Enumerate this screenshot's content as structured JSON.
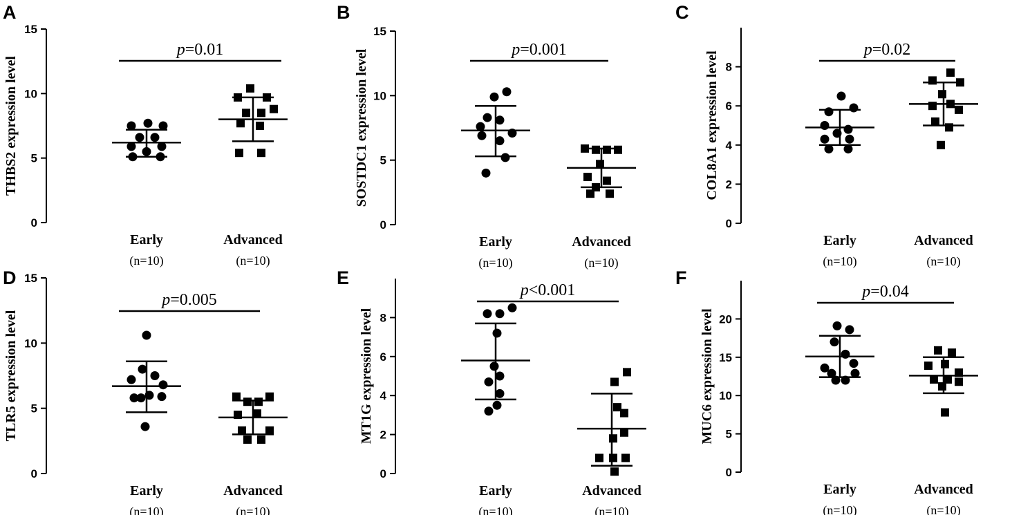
{
  "chart_data": [
    {
      "panel": "A",
      "type": "scatter",
      "ylabel": "THBS2 expression level",
      "ylim": [
        0,
        15
      ],
      "yticks": [
        0,
        5,
        10,
        15
      ],
      "categories": [
        "Early",
        "Advanced"
      ],
      "n_labels": [
        "(n=10)",
        "(n=10)"
      ],
      "p_label": {
        "symbol": "p",
        "text": "=0.01"
      },
      "groups": [
        {
          "name": "Early",
          "marker": "circle",
          "mean": 6.2,
          "sd_low": 5.1,
          "sd_high": 7.2,
          "points": [
            {
              "dx": -0.55,
              "y": 7.5
            },
            {
              "dx": 0.05,
              "y": 7.7
            },
            {
              "dx": 0.6,
              "y": 7.5
            },
            {
              "dx": -0.25,
              "y": 6.6
            },
            {
              "dx": 0.3,
              "y": 6.6
            },
            {
              "dx": -0.55,
              "y": 5.9
            },
            {
              "dx": 0.55,
              "y": 5.9
            },
            {
              "dx": 0.0,
              "y": 5.5
            },
            {
              "dx": -0.5,
              "y": 5.1
            },
            {
              "dx": 0.5,
              "y": 5.1
            }
          ]
        },
        {
          "name": "Advanced",
          "marker": "square",
          "mean": 8.0,
          "sd_low": 6.3,
          "sd_high": 9.7,
          "points": [
            {
              "dx": -0.1,
              "y": 10.4
            },
            {
              "dx": -0.55,
              "y": 9.7
            },
            {
              "dx": 0.5,
              "y": 9.7
            },
            {
              "dx": -0.25,
              "y": 8.5
            },
            {
              "dx": 0.3,
              "y": 8.5
            },
            {
              "dx": 0.75,
              "y": 8.8
            },
            {
              "dx": -0.45,
              "y": 7.7
            },
            {
              "dx": 0.25,
              "y": 7.5
            },
            {
              "dx": -0.5,
              "y": 5.4
            },
            {
              "dx": 0.3,
              "y": 5.4
            }
          ]
        }
      ]
    },
    {
      "panel": "B",
      "type": "scatter",
      "ylabel": "SOSTDC1 expression level",
      "ylim": [
        0,
        15
      ],
      "yticks": [
        0,
        5,
        10,
        15
      ],
      "categories": [
        "Early",
        "Advanced"
      ],
      "n_labels": [
        "(n=10)",
        "(n=10)"
      ],
      "p_label": {
        "symbol": "p",
        "text": "=0.001"
      },
      "groups": [
        {
          "name": "Early",
          "marker": "circle",
          "mean": 7.3,
          "sd_low": 5.3,
          "sd_high": 9.2,
          "points": [
            {
              "dx": 0.4,
              "y": 10.3
            },
            {
              "dx": -0.05,
              "y": 9.9
            },
            {
              "dx": -0.3,
              "y": 8.3
            },
            {
              "dx": 0.15,
              "y": 8.1
            },
            {
              "dx": -0.55,
              "y": 7.6
            },
            {
              "dx": 0.6,
              "y": 7.1
            },
            {
              "dx": -0.5,
              "y": 6.9
            },
            {
              "dx": 0.15,
              "y": 6.5
            },
            {
              "dx": 0.35,
              "y": 5.2
            },
            {
              "dx": -0.35,
              "y": 4.0
            }
          ]
        },
        {
          "name": "Advanced",
          "marker": "square",
          "mean": 4.4,
          "sd_low": 2.9,
          "sd_high": 5.9,
          "points": [
            {
              "dx": -0.6,
              "y": 5.9
            },
            {
              "dx": -0.2,
              "y": 5.8
            },
            {
              "dx": 0.2,
              "y": 5.8
            },
            {
              "dx": 0.6,
              "y": 5.8
            },
            {
              "dx": -0.05,
              "y": 4.7
            },
            {
              "dx": -0.5,
              "y": 3.7
            },
            {
              "dx": 0.2,
              "y": 3.4
            },
            {
              "dx": -0.2,
              "y": 2.9
            },
            {
              "dx": -0.4,
              "y": 2.4
            },
            {
              "dx": 0.3,
              "y": 2.4
            }
          ]
        }
      ]
    },
    {
      "panel": "C",
      "type": "scatter",
      "ylabel": "COL8A1 expression level",
      "ylim": [
        0,
        10
      ],
      "yticks": [
        0,
        2,
        4,
        6,
        8
      ],
      "categories": [
        "Early",
        "Advanced"
      ],
      "n_labels": [
        "(n=10)",
        "(n=10)"
      ],
      "p_label": {
        "symbol": "p",
        "text": "=0.02"
      },
      "groups": [
        {
          "name": "Early",
          "marker": "circle",
          "mean": 4.9,
          "sd_low": 4.0,
          "sd_high": 5.8,
          "points": [
            {
              "dx": 0.05,
              "y": 6.5
            },
            {
              "dx": -0.4,
              "y": 5.7
            },
            {
              "dx": 0.5,
              "y": 5.9
            },
            {
              "dx": -0.55,
              "y": 5.0
            },
            {
              "dx": 0.3,
              "y": 4.8
            },
            {
              "dx": -0.1,
              "y": 4.6
            },
            {
              "dx": -0.55,
              "y": 4.3
            },
            {
              "dx": 0.35,
              "y": 4.3
            },
            {
              "dx": -0.4,
              "y": 3.8
            },
            {
              "dx": 0.3,
              "y": 3.8
            }
          ]
        },
        {
          "name": "Advanced",
          "marker": "square",
          "mean": 6.1,
          "sd_low": 5.0,
          "sd_high": 7.2,
          "points": [
            {
              "dx": -0.4,
              "y": 7.3
            },
            {
              "dx": 0.25,
              "y": 7.7
            },
            {
              "dx": 0.6,
              "y": 7.2
            },
            {
              "dx": -0.05,
              "y": 6.6
            },
            {
              "dx": -0.4,
              "y": 6.0
            },
            {
              "dx": 0.25,
              "y": 6.1
            },
            {
              "dx": 0.55,
              "y": 5.8
            },
            {
              "dx": -0.3,
              "y": 5.2
            },
            {
              "dx": 0.2,
              "y": 4.9
            },
            {
              "dx": -0.1,
              "y": 4.0
            }
          ]
        }
      ]
    },
    {
      "panel": "D",
      "type": "scatter",
      "ylabel": "TLR5 expression level",
      "ylim": [
        0,
        15
      ],
      "yticks": [
        0,
        5,
        10,
        15
      ],
      "categories": [
        "Early",
        "Advanced"
      ],
      "n_labels": [
        "(n=10)",
        "(n=10)"
      ],
      "p_label": {
        "symbol": "p",
        "text": "=0.005"
      },
      "groups": [
        {
          "name": "Early",
          "marker": "circle",
          "mean": 6.7,
          "sd_low": 4.7,
          "sd_high": 8.6,
          "points": [
            {
              "dx": 0.0,
              "y": 10.6
            },
            {
              "dx": -0.15,
              "y": 8.0
            },
            {
              "dx": -0.55,
              "y": 7.2
            },
            {
              "dx": 0.3,
              "y": 7.5
            },
            {
              "dx": 0.6,
              "y": 6.8
            },
            {
              "dx": -0.45,
              "y": 5.8
            },
            {
              "dx": 0.1,
              "y": 6.0
            },
            {
              "dx": 0.55,
              "y": 5.9
            },
            {
              "dx": -0.2,
              "y": 5.8
            },
            {
              "dx": -0.05,
              "y": 3.6
            }
          ]
        },
        {
          "name": "Advanced",
          "marker": "square",
          "mean": 4.3,
          "sd_low": 3.0,
          "sd_high": 5.6,
          "points": [
            {
              "dx": -0.6,
              "y": 5.9
            },
            {
              "dx": 0.6,
              "y": 5.9
            },
            {
              "dx": -0.2,
              "y": 5.5
            },
            {
              "dx": 0.2,
              "y": 5.5
            },
            {
              "dx": -0.55,
              "y": 4.5
            },
            {
              "dx": 0.15,
              "y": 4.6
            },
            {
              "dx": -0.4,
              "y": 3.3
            },
            {
              "dx": 0.6,
              "y": 3.3
            },
            {
              "dx": -0.2,
              "y": 2.6
            },
            {
              "dx": 0.3,
              "y": 2.6
            }
          ]
        }
      ]
    },
    {
      "panel": "E",
      "type": "scatter",
      "ylabel": "MT1G expression level",
      "ylim": [
        0,
        10
      ],
      "yticks": [
        0,
        2,
        4,
        6,
        8
      ],
      "categories": [
        "Early",
        "Advanced"
      ],
      "n_labels": [
        "(n=10)",
        "(n=10)"
      ],
      "p_label": {
        "symbol": "p",
        "text": "<0.001"
      },
      "groups": [
        {
          "name": "Early",
          "marker": "circle",
          "mean": 5.8,
          "sd_low": 3.8,
          "sd_high": 7.7,
          "points": [
            {
              "dx": 0.6,
              "y": 8.5
            },
            {
              "dx": -0.3,
              "y": 8.2
            },
            {
              "dx": 0.15,
              "y": 8.2
            },
            {
              "dx": 0.05,
              "y": 7.2
            },
            {
              "dx": -0.05,
              "y": 5.5
            },
            {
              "dx": 0.15,
              "y": 5.0
            },
            {
              "dx": -0.25,
              "y": 4.7
            },
            {
              "dx": 0.15,
              "y": 4.1
            },
            {
              "dx": -0.25,
              "y": 3.2
            },
            {
              "dx": 0.05,
              "y": 3.5
            }
          ]
        },
        {
          "name": "Advanced",
          "marker": "square",
          "mean": 2.3,
          "sd_low": 0.4,
          "sd_high": 4.1,
          "points": [
            {
              "dx": 0.55,
              "y": 5.2
            },
            {
              "dx": 0.1,
              "y": 4.7
            },
            {
              "dx": 0.2,
              "y": 3.4
            },
            {
              "dx": 0.45,
              "y": 3.1
            },
            {
              "dx": 0.45,
              "y": 2.1
            },
            {
              "dx": 0.05,
              "y": 1.8
            },
            {
              "dx": -0.45,
              "y": 0.8
            },
            {
              "dx": 0.05,
              "y": 0.8
            },
            {
              "dx": 0.5,
              "y": 0.8
            },
            {
              "dx": 0.1,
              "y": 0.1
            }
          ]
        }
      ]
    },
    {
      "panel": "F",
      "type": "scatter",
      "ylabel": "MUC6 expression level",
      "ylim": [
        0,
        25
      ],
      "yticks": [
        0,
        5,
        10,
        15,
        20
      ],
      "categories": [
        "Early",
        "Advanced"
      ],
      "n_labels": [
        "(n=10)",
        "(n=10)"
      ],
      "p_label": {
        "symbol": "p",
        "text": "=0.04"
      },
      "groups": [
        {
          "name": "Early",
          "marker": "circle",
          "mean": 15.1,
          "sd_low": 12.4,
          "sd_high": 17.8,
          "points": [
            {
              "dx": -0.1,
              "y": 19.1
            },
            {
              "dx": 0.35,
              "y": 18.6
            },
            {
              "dx": -0.2,
              "y": 17.0
            },
            {
              "dx": 0.2,
              "y": 15.4
            },
            {
              "dx": -0.55,
              "y": 13.6
            },
            {
              "dx": 0.5,
              "y": 14.2
            },
            {
              "dx": -0.3,
              "y": 12.9
            },
            {
              "dx": 0.55,
              "y": 12.9
            },
            {
              "dx": -0.15,
              "y": 12.0
            },
            {
              "dx": 0.2,
              "y": 12.0
            }
          ]
        },
        {
          "name": "Advanced",
          "marker": "square",
          "mean": 12.6,
          "sd_low": 10.3,
          "sd_high": 15.0,
          "points": [
            {
              "dx": -0.2,
              "y": 15.9
            },
            {
              "dx": 0.3,
              "y": 15.6
            },
            {
              "dx": -0.55,
              "y": 13.9
            },
            {
              "dx": 0.05,
              "y": 14.1
            },
            {
              "dx": 0.55,
              "y": 13.0
            },
            {
              "dx": -0.35,
              "y": 12.1
            },
            {
              "dx": 0.15,
              "y": 12.1
            },
            {
              "dx": -0.05,
              "y": 11.2
            },
            {
              "dx": 0.55,
              "y": 11.8
            },
            {
              "dx": 0.05,
              "y": 7.8
            }
          ]
        }
      ]
    }
  ]
}
